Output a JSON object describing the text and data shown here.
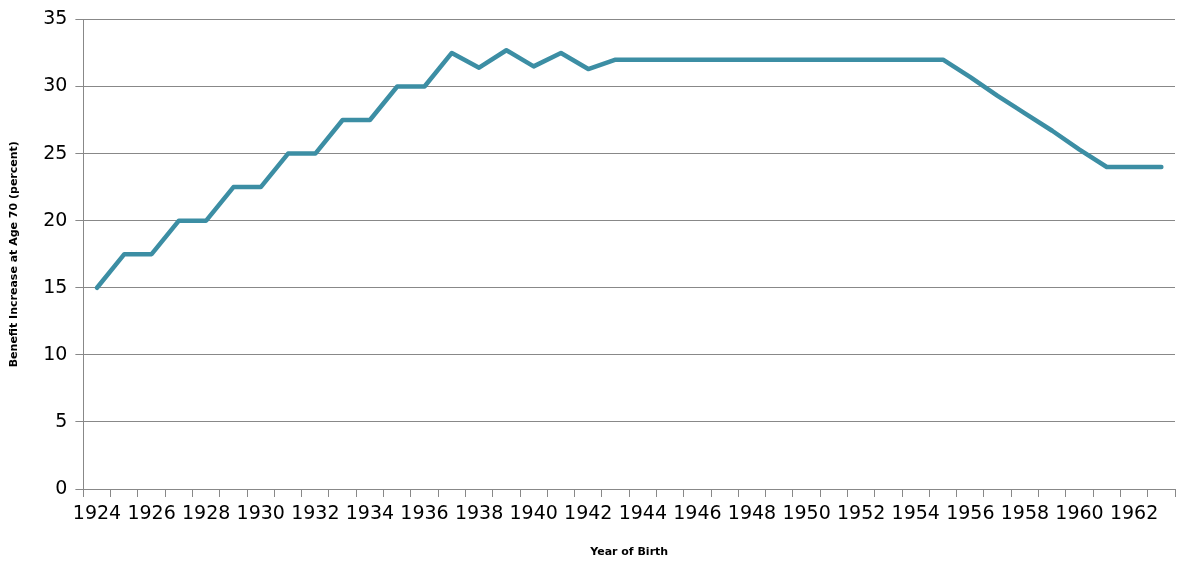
{
  "chart_data": {
    "type": "line",
    "xlabel": "Year of Birth",
    "ylabel": "Benefit Increase at Age 70 (percent)",
    "categories": [
      "1924",
      null,
      "1926",
      null,
      "1928",
      null,
      "1930",
      null,
      "1932",
      null,
      "1934",
      null,
      "1936",
      null,
      "1938",
      null,
      "1940",
      null,
      "1942",
      null,
      "1944",
      null,
      "1946",
      null,
      "1948",
      null,
      "1950",
      null,
      "1952",
      null,
      "1954",
      null,
      "1956",
      null,
      "1958",
      null,
      "1960",
      null,
      "1962",
      null
    ],
    "series": [
      {
        "color": "#3c8ea4",
        "values": [
          15,
          17.5,
          17.5,
          20,
          20,
          22.5,
          22.5,
          25,
          25,
          27.5,
          27.5,
          30,
          30,
          32.5,
          31.4,
          32.7,
          31.5,
          32.5,
          31.3,
          32,
          32,
          32,
          32,
          32,
          32,
          32,
          32,
          32,
          32,
          32,
          32,
          32,
          30.7,
          29.3,
          28,
          26.7,
          25.3,
          24,
          24,
          24
        ]
      }
    ],
    "ylim": [
      0,
      35
    ],
    "yticks": [
      0,
      5,
      10,
      15,
      20,
      25,
      30,
      35
    ],
    "grid": "y",
    "legend": false,
    "marker": "none",
    "line_style": "solid"
  }
}
